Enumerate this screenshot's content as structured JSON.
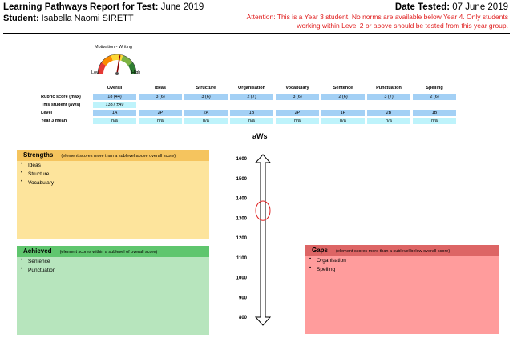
{
  "header": {
    "title_prefix": "Learning Pathways Report for Test:",
    "title_test": " June 2019",
    "student_label": "Student:",
    "student_name": " Isabella Naomi SIRETT",
    "date_label": "Date Tested:",
    "date_value": " 07 June 2019",
    "attention": "Attention: This is a Year 3 student. No norms are available below Year 4. Only students working within Level 2 or above should be tested from this year group."
  },
  "gauge": {
    "title": "Motivation - Writing",
    "low_label": "Low",
    "high_label": "High",
    "level_fraction": 0.55,
    "colors": [
      "#e53935",
      "#fb8c00",
      "#fdd835",
      "#7cb342",
      "#2e7d32"
    ]
  },
  "table": {
    "columns": [
      "Overall",
      "Ideas",
      "Structure",
      "Organisation",
      "Vocabulary",
      "Sentence",
      "Punctuation",
      "Spelling"
    ],
    "rows": [
      {
        "label": "Rubric score (max)",
        "values": [
          "18 (44)",
          "3 (6)",
          "3 (6)",
          "2 (7)",
          "3 (6)",
          "2 (6)",
          "3 (7)",
          "2 (6)"
        ],
        "color": "#a3d0f5"
      },
      {
        "label": "This student (aWs)",
        "values": [
          "1337 ±49",
          "",
          "",
          "",
          "",
          "",
          "",
          ""
        ],
        "color": "#bef3fb"
      },
      {
        "label": "Level",
        "values": [
          "1A",
          "2P",
          "2A",
          "1B",
          "2P",
          "1P",
          "2B",
          "1B"
        ],
        "color": "#a3d0f5"
      },
      {
        "label": "Year 3 mean",
        "values": [
          "n/a",
          "n/a",
          "n/a",
          "n/a",
          "n/a",
          "n/a",
          "n/a",
          "n/a"
        ],
        "color": "#bef3fb"
      }
    ]
  },
  "strengths": {
    "title": "Strengths",
    "subtitle": "(element scores more than a sublevel above overall score)",
    "items": [
      "Ideas",
      "Structure",
      "Vocabulary"
    ]
  },
  "achieved": {
    "title": "Achieved",
    "subtitle": "(element scores within a sublevel of overall score)",
    "items": [
      "Sentence",
      "Punctuation"
    ]
  },
  "gaps": {
    "title": "Gaps",
    "subtitle": "(element scores more than a sublevel below overall score)",
    "items": [
      "Organisation",
      "Spelling"
    ]
  },
  "scale": {
    "title": "aWs",
    "ticks": [
      "1600",
      "1500",
      "1400",
      "1300",
      "1200",
      "1100",
      "1000",
      "900",
      "800"
    ],
    "min": 800,
    "max": 1600,
    "marker_value": 1337,
    "marker_error": 49,
    "marker_color": "#e02020"
  }
}
